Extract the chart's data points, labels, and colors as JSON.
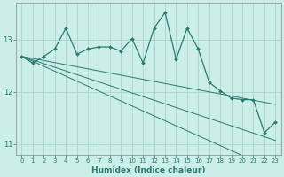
{
  "xlabel": "Humidex (Indice chaleur)",
  "ylabel": "",
  "background_color": "#cceee8",
  "grid_color": "#aad4ce",
  "line_color": "#2a7a70",
  "x": [
    0,
    1,
    2,
    3,
    4,
    5,
    6,
    7,
    8,
    9,
    10,
    11,
    12,
    13,
    14,
    15,
    16,
    17,
    18,
    19,
    20,
    21,
    22,
    23
  ],
  "y_zigzag": [
    12.68,
    12.55,
    12.68,
    12.82,
    13.22,
    12.72,
    12.82,
    12.86,
    12.86,
    12.78,
    13.02,
    12.55,
    13.22,
    13.52,
    12.62,
    13.22,
    12.82,
    12.18,
    12.02,
    11.88,
    11.85,
    11.85,
    11.22,
    11.42
  ],
  "y_line1": [
    12.68,
    12.64,
    12.6,
    12.56,
    12.52,
    12.48,
    12.44,
    12.4,
    12.36,
    12.32,
    12.28,
    12.24,
    12.2,
    12.16,
    12.12,
    12.08,
    12.04,
    12.0,
    11.96,
    11.92,
    11.88,
    11.84,
    11.8,
    11.76
  ],
  "y_line2": [
    12.68,
    12.61,
    12.54,
    12.47,
    12.4,
    12.33,
    12.26,
    12.19,
    12.12,
    12.05,
    11.98,
    11.91,
    11.84,
    11.77,
    11.7,
    11.63,
    11.56,
    11.49,
    11.42,
    11.35,
    11.28,
    11.21,
    11.14,
    11.07
  ],
  "y_line3": [
    12.68,
    12.585,
    12.49,
    12.395,
    12.3,
    12.205,
    12.11,
    12.015,
    11.92,
    11.825,
    11.73,
    11.635,
    11.54,
    11.445,
    11.35,
    11.255,
    11.16,
    11.065,
    10.97,
    10.875,
    10.78,
    10.685,
    10.59,
    10.495
  ],
  "ylim": [
    10.8,
    13.7
  ],
  "yticks": [
    11,
    12,
    13
  ],
  "xticks": [
    0,
    1,
    2,
    3,
    4,
    5,
    6,
    7,
    8,
    9,
    10,
    11,
    12,
    13,
    14,
    15,
    16,
    17,
    18,
    19,
    20,
    21,
    22,
    23
  ],
  "figsize": [
    3.2,
    2.0
  ],
  "dpi": 100
}
